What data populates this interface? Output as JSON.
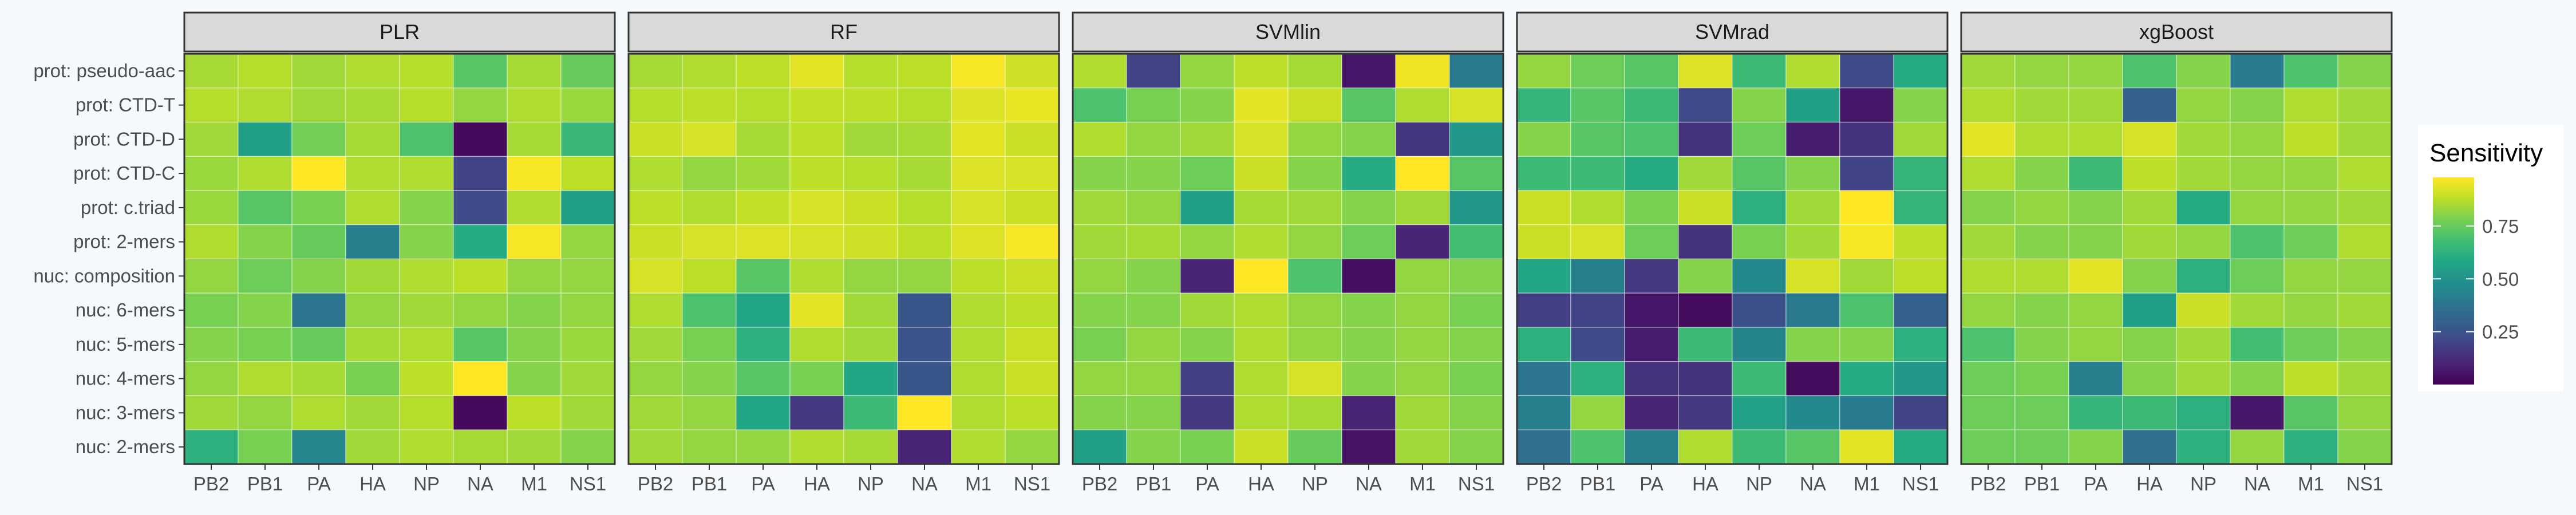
{
  "chart_data": {
    "type": "heatmap",
    "facets": [
      "PLR",
      "RF",
      "SVMlin",
      "SVMrad",
      "xgBoost"
    ],
    "x_categories": [
      "PB2",
      "PB1",
      "PA",
      "HA",
      "NP",
      "NA",
      "M1",
      "NS1"
    ],
    "y_categories": [
      "prot: pseudo-aac",
      "prot: CTD-T",
      "prot: CTD-D",
      "prot: CTD-C",
      "prot: c.triad",
      "prot: 2-mers",
      "nuc: composition",
      "nuc: 6-mers",
      "nuc: 5-mers",
      "nuc: 4-mers",
      "nuc: 3-mers",
      "nuc: 2-mers"
    ],
    "legend": {
      "title": "Sensitivity",
      "ticks": [
        {
          "value": 0.75,
          "label": "0.75"
        },
        {
          "value": 0.5,
          "label": "0.50"
        },
        {
          "value": 0.25,
          "label": "0.25"
        }
      ],
      "min": 0.0,
      "max": 0.98,
      "position": "right"
    },
    "colorscale": "viridis",
    "values": {
      "PLR": [
        [
          0.85,
          0.87,
          0.84,
          0.86,
          0.87,
          0.72,
          0.85,
          0.75
        ],
        [
          0.87,
          0.86,
          0.84,
          0.85,
          0.87,
          0.82,
          0.86,
          0.83
        ],
        [
          0.84,
          0.55,
          0.77,
          0.85,
          0.7,
          0.02,
          0.85,
          0.65
        ],
        [
          0.83,
          0.86,
          0.98,
          0.86,
          0.86,
          0.2,
          0.97,
          0.88
        ],
        [
          0.83,
          0.72,
          0.78,
          0.86,
          0.8,
          0.22,
          0.86,
          0.55
        ],
        [
          0.86,
          0.8,
          0.75,
          0.42,
          0.8,
          0.6,
          0.97,
          0.82
        ],
        [
          0.82,
          0.76,
          0.8,
          0.84,
          0.86,
          0.88,
          0.82,
          0.82
        ],
        [
          0.78,
          0.8,
          0.38,
          0.82,
          0.84,
          0.82,
          0.8,
          0.82
        ],
        [
          0.8,
          0.78,
          0.75,
          0.85,
          0.86,
          0.72,
          0.8,
          0.83
        ],
        [
          0.82,
          0.86,
          0.85,
          0.78,
          0.88,
          0.98,
          0.8,
          0.84
        ],
        [
          0.84,
          0.82,
          0.86,
          0.84,
          0.87,
          0.02,
          0.88,
          0.84
        ],
        [
          0.62,
          0.78,
          0.45,
          0.84,
          0.86,
          0.85,
          0.84,
          0.8
        ]
      ],
      "RF": [
        [
          0.85,
          0.86,
          0.88,
          0.94,
          0.87,
          0.88,
          0.97,
          0.91
        ],
        [
          0.87,
          0.88,
          0.87,
          0.89,
          0.88,
          0.87,
          0.93,
          0.95
        ],
        [
          0.9,
          0.92,
          0.85,
          0.88,
          0.84,
          0.85,
          0.94,
          0.9
        ],
        [
          0.86,
          0.82,
          0.84,
          0.88,
          0.87,
          0.85,
          0.93,
          0.92
        ],
        [
          0.88,
          0.86,
          0.89,
          0.92,
          0.9,
          0.87,
          0.92,
          0.9
        ],
        [
          0.9,
          0.92,
          0.93,
          0.92,
          0.91,
          0.88,
          0.93,
          0.97
        ],
        [
          0.92,
          0.88,
          0.72,
          0.86,
          0.82,
          0.82,
          0.88,
          0.9
        ],
        [
          0.86,
          0.7,
          0.58,
          0.94,
          0.84,
          0.26,
          0.86,
          0.88
        ],
        [
          0.84,
          0.78,
          0.62,
          0.86,
          0.84,
          0.25,
          0.86,
          0.9
        ],
        [
          0.82,
          0.8,
          0.72,
          0.78,
          0.58,
          0.26,
          0.86,
          0.9
        ],
        [
          0.84,
          0.82,
          0.58,
          0.16,
          0.66,
          0.98,
          0.86,
          0.88
        ],
        [
          0.84,
          0.82,
          0.82,
          0.86,
          0.85,
          0.1,
          0.86,
          0.82
        ]
      ],
      "SVMlin": [
        [
          0.86,
          0.2,
          0.82,
          0.88,
          0.85,
          0.06,
          0.96,
          0.4
        ],
        [
          0.7,
          0.78,
          0.8,
          0.94,
          0.9,
          0.72,
          0.86,
          0.92
        ],
        [
          0.86,
          0.82,
          0.84,
          0.92,
          0.82,
          0.8,
          0.15,
          0.52
        ],
        [
          0.8,
          0.8,
          0.76,
          0.9,
          0.8,
          0.6,
          0.98,
          0.72
        ],
        [
          0.84,
          0.82,
          0.55,
          0.85,
          0.84,
          0.8,
          0.84,
          0.52
        ],
        [
          0.84,
          0.85,
          0.82,
          0.86,
          0.82,
          0.76,
          0.1,
          0.68
        ],
        [
          0.82,
          0.8,
          0.1,
          0.98,
          0.7,
          0.04,
          0.82,
          0.8
        ],
        [
          0.8,
          0.8,
          0.84,
          0.86,
          0.82,
          0.8,
          0.82,
          0.78
        ],
        [
          0.78,
          0.82,
          0.8,
          0.86,
          0.82,
          0.8,
          0.82,
          0.8
        ],
        [
          0.82,
          0.82,
          0.18,
          0.86,
          0.92,
          0.8,
          0.82,
          0.78
        ],
        [
          0.8,
          0.8,
          0.16,
          0.86,
          0.85,
          0.1,
          0.84,
          0.8
        ],
        [
          0.55,
          0.8,
          0.78,
          0.9,
          0.75,
          0.05,
          0.84,
          0.8
        ]
      ],
      "SVMrad": [
        [
          0.82,
          0.76,
          0.72,
          0.93,
          0.66,
          0.86,
          0.22,
          0.6
        ],
        [
          0.64,
          0.72,
          0.66,
          0.22,
          0.8,
          0.55,
          0.06,
          0.8
        ],
        [
          0.8,
          0.72,
          0.7,
          0.14,
          0.76,
          0.08,
          0.14,
          0.84
        ],
        [
          0.66,
          0.66,
          0.6,
          0.84,
          0.72,
          0.8,
          0.2,
          0.64
        ],
        [
          0.9,
          0.86,
          0.78,
          0.9,
          0.62,
          0.84,
          0.98,
          0.64
        ],
        [
          0.9,
          0.92,
          0.76,
          0.14,
          0.78,
          0.84,
          0.97,
          0.88
        ],
        [
          0.58,
          0.42,
          0.16,
          0.8,
          0.46,
          0.92,
          0.84,
          0.88
        ],
        [
          0.18,
          0.2,
          0.06,
          0.03,
          0.24,
          0.4,
          0.7,
          0.3
        ],
        [
          0.62,
          0.22,
          0.08,
          0.66,
          0.44,
          0.8,
          0.8,
          0.62
        ],
        [
          0.38,
          0.62,
          0.14,
          0.14,
          0.66,
          0.03,
          0.6,
          0.52
        ],
        [
          0.42,
          0.82,
          0.1,
          0.16,
          0.56,
          0.46,
          0.4,
          0.2
        ],
        [
          0.36,
          0.7,
          0.42,
          0.86,
          0.66,
          0.72,
          0.94,
          0.6
        ]
      ],
      "xgBoost": [
        [
          0.84,
          0.82,
          0.82,
          0.7,
          0.8,
          0.4,
          0.7,
          0.8
        ],
        [
          0.86,
          0.84,
          0.84,
          0.3,
          0.82,
          0.8,
          0.86,
          0.84
        ],
        [
          0.94,
          0.86,
          0.86,
          0.92,
          0.84,
          0.82,
          0.88,
          0.84
        ],
        [
          0.86,
          0.8,
          0.66,
          0.88,
          0.84,
          0.82,
          0.82,
          0.86
        ],
        [
          0.8,
          0.82,
          0.8,
          0.84,
          0.6,
          0.82,
          0.82,
          0.84
        ],
        [
          0.84,
          0.8,
          0.8,
          0.84,
          0.82,
          0.7,
          0.76,
          0.86
        ],
        [
          0.86,
          0.86,
          0.94,
          0.8,
          0.62,
          0.76,
          0.82,
          0.82
        ],
        [
          0.82,
          0.8,
          0.82,
          0.55,
          0.9,
          0.84,
          0.82,
          0.84
        ],
        [
          0.7,
          0.8,
          0.82,
          0.8,
          0.84,
          0.68,
          0.76,
          0.8
        ],
        [
          0.76,
          0.78,
          0.42,
          0.8,
          0.84,
          0.8,
          0.88,
          0.84
        ],
        [
          0.76,
          0.76,
          0.64,
          0.66,
          0.62,
          0.06,
          0.72,
          0.82
        ],
        [
          0.76,
          0.76,
          0.8,
          0.36,
          0.62,
          0.82,
          0.62,
          0.8
        ]
      ]
    }
  }
}
